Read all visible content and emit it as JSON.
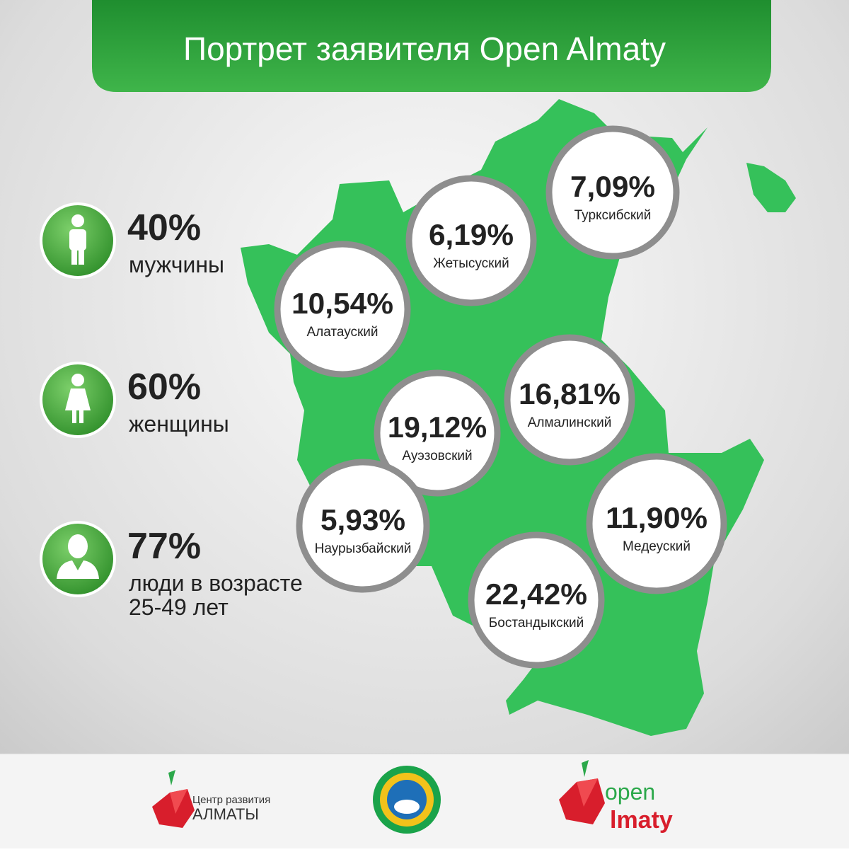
{
  "header": {
    "title": "Портрет заявителя Open Almaty"
  },
  "stats": [
    {
      "value": "40%",
      "label": [
        "мужчины"
      ]
    },
    {
      "value": "60%",
      "label": [
        "женщины"
      ]
    },
    {
      "value": "77%",
      "label": [
        "люди в возрасте",
        "25-49 лет"
      ]
    }
  ],
  "districts": [
    {
      "value": "7,09%",
      "name": "Турксибский"
    },
    {
      "value": "6,19%",
      "name": "Жетысуский"
    },
    {
      "value": "10,54%",
      "name": "Алатауский"
    },
    {
      "value": "16,81%",
      "name": "Алмалинский"
    },
    {
      "value": "19,12%",
      "name": "Ауэзовский"
    },
    {
      "value": "5,93%",
      "name": "Наурызбайский"
    },
    {
      "value": "11,90%",
      "name": "Медеуский"
    },
    {
      "value": "22,42%",
      "name": "Бостандыкский"
    }
  ],
  "footer": {
    "center_line1": "Центр развития",
    "center_line2": "АЛМАТЫ",
    "open_line1": "open",
    "open_line2": "lmaty"
  }
}
